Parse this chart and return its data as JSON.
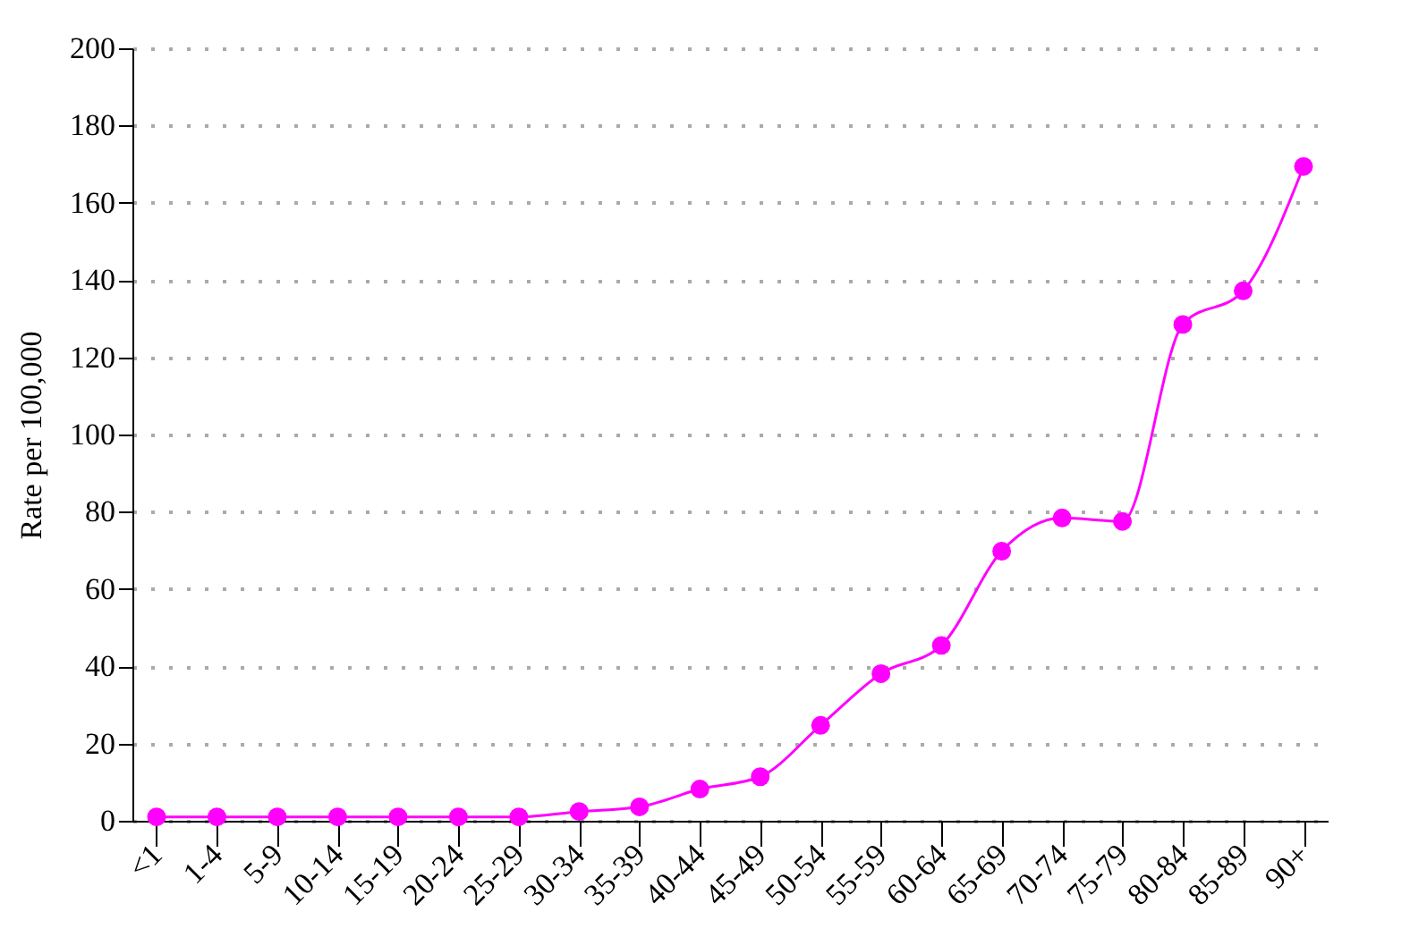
{
  "chart_data": {
    "type": "line",
    "ylabel": "Rate per 100,000",
    "categories": [
      "<1",
      "1-4",
      "5-9",
      "10-14",
      "15-19",
      "20-24",
      "25-29",
      "30-34",
      "35-39",
      "40-44",
      "45-49",
      "50-54",
      "55-59",
      "60-64",
      "65-69",
      "70-74",
      "75-79",
      "80-84",
      "85-89",
      "90+"
    ],
    "series": [
      {
        "color": "#ff00ff",
        "values": [
          1,
          1,
          1,
          1,
          1,
          1,
          1,
          2.4,
          3.6,
          8.2,
          11.4,
          24.7,
          38.1,
          45.4,
          69.8,
          78.4,
          77.5,
          128.5,
          137.2,
          169.4
        ]
      }
    ],
    "ylim": [
      0,
      200
    ],
    "yticks": [
      0,
      20,
      40,
      60,
      80,
      100,
      120,
      140,
      160,
      180,
      200
    ],
    "grid": "y",
    "marker": "circle",
    "line_style": "solid"
  }
}
